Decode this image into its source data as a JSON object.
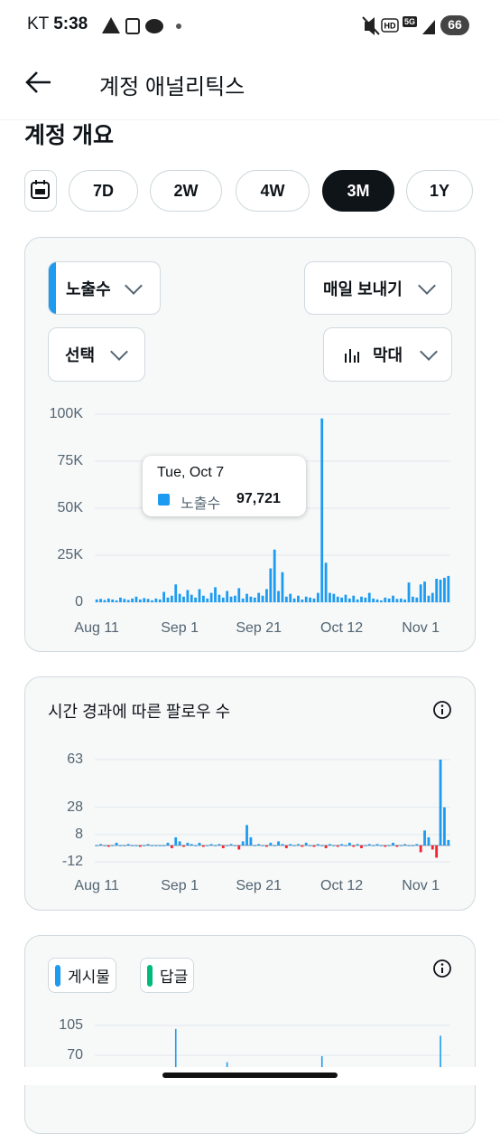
{
  "status_bar": {
    "carrier": "KT",
    "time": "5:38",
    "icons": [
      "HD",
      "5G"
    ],
    "battery": "66"
  },
  "header": {
    "title": "계정 애널리틱스"
  },
  "section_title": "계정 개요",
  "range_buttons": {
    "options": [
      "7D",
      "2W",
      "4W",
      "3M",
      "1Y"
    ],
    "selected": "3M"
  },
  "impressions_card": {
    "frequency_dropdown": "매일 보내기",
    "select_dropdown": "선택",
    "chart_type_dropdown": "막대"
  },
  "tooltip": {
    "title": "Tue, Oct 7",
    "label": "97,721"
  },
  "chart_data": [
    {
      "type": "bar",
      "categories": [
        "Aug 11",
        null,
        null,
        null,
        null,
        null,
        null,
        null,
        null,
        null,
        null,
        null,
        null,
        null,
        null,
        null,
        null,
        null,
        null,
        null,
        null,
        "Sep 1",
        null,
        null,
        null,
        null,
        null,
        null,
        null,
        null,
        null,
        null,
        null,
        null,
        null,
        null,
        null,
        null,
        null,
        null,
        null,
        "Sep 21",
        null,
        null,
        null,
        null,
        null,
        null,
        null,
        null,
        null,
        null,
        null,
        null,
        null,
        null,
        null,
        null,
        null,
        null,
        null,
        null,
        "Oct 12",
        null,
        null,
        null,
        null,
        null,
        null,
        null,
        null,
        null,
        null,
        null,
        null,
        null,
        null,
        null,
        null,
        null,
        null,
        null,
        "Nov 1",
        null,
        null,
        null,
        null,
        null,
        null,
        null
      ],
      "series": [
        {
          "name": "노출수",
          "color": "#1d9bf0",
          "values": [
            1500,
            1800,
            1200,
            2000,
            1500,
            1000,
            2500,
            1800,
            1200,
            2000,
            3000,
            1500,
            2200,
            1800,
            1000,
            2000,
            1500,
            5500,
            2500,
            3500,
            9500,
            4500,
            3000,
            6500,
            4000,
            2500,
            7000,
            3500,
            2000,
            5000,
            8000,
            4000,
            2500,
            6000,
            3000,
            3500,
            7500,
            2000,
            4500,
            3000,
            2500,
            5000,
            3500,
            7000,
            18000,
            28000,
            6000,
            16000,
            3000,
            4500,
            2000,
            3500,
            1500,
            3000,
            2500,
            2000,
            5000,
            97721,
            21000,
            5000,
            4500,
            3000,
            2500,
            4000,
            2000,
            3500,
            1500,
            3000,
            2500,
            5000,
            2000,
            1500,
            1000,
            2500,
            2000,
            3500,
            1800,
            2000,
            1500,
            10500,
            3000,
            2500,
            9500,
            11000,
            3500,
            5000,
            12500,
            12000,
            13000,
            14000
          ]
        }
      ],
      "ylim": [
        0,
        100000
      ],
      "yticks": [
        0,
        {
          "value": 25000,
          "label": "25K"
        },
        {
          "value": 50000,
          "label": "50K"
        },
        {
          "value": 75000,
          "label": "75K"
        },
        {
          "value": 100000,
          "label": "100K"
        }
      ],
      "grid": true
    },
    {
      "type": "bar",
      "title": "시간 경과에 따른 팔로우 수",
      "categories": [
        "Aug 11",
        null,
        null,
        null,
        null,
        null,
        null,
        null,
        null,
        null,
        null,
        null,
        null,
        null,
        null,
        null,
        null,
        null,
        null,
        null,
        null,
        "Sep 1",
        null,
        null,
        null,
        null,
        null,
        null,
        null,
        null,
        null,
        null,
        null,
        null,
        null,
        null,
        null,
        null,
        null,
        null,
        null,
        "Sep 21",
        null,
        null,
        null,
        null,
        null,
        null,
        null,
        null,
        null,
        null,
        null,
        null,
        null,
        null,
        null,
        null,
        null,
        null,
        null,
        null,
        "Oct 12",
        null,
        null,
        null,
        null,
        null,
        null,
        null,
        null,
        null,
        null,
        null,
        null,
        null,
        null,
        null,
        null,
        null,
        null,
        null,
        "Nov 1",
        null,
        null,
        null,
        null,
        null,
        null,
        null
      ],
      "values": [
        0,
        1,
        0,
        -1,
        0,
        2,
        0,
        0,
        1,
        0,
        0,
        -1,
        0,
        1,
        0,
        0,
        0,
        0,
        2,
        -2,
        6,
        3,
        -1,
        2,
        1,
        0,
        2,
        -1,
        0,
        1,
        0,
        1,
        -2,
        0,
        1,
        0,
        -3,
        3,
        15,
        6,
        0,
        1,
        0,
        -1,
        2,
        0,
        3,
        1,
        -2,
        1,
        0,
        1,
        -1,
        2,
        0,
        -1,
        1,
        0,
        -2,
        1,
        0,
        -1,
        1,
        0,
        2,
        -1,
        1,
        -2,
        0,
        1,
        0,
        1,
        0,
        -1,
        0,
        2,
        -1,
        0,
        1,
        0,
        0,
        1,
        -5,
        11,
        6,
        -3,
        -9,
        63,
        28,
        4
      ],
      "colors": {
        "positive": "#1d9bf0",
        "negative": "#f4212e"
      },
      "ylim": [
        -12,
        63
      ],
      "yticks": [
        -12,
        8,
        28,
        63
      ],
      "grid": true
    },
    {
      "type": "bar",
      "series": [
        {
          "name": "게시물",
          "color": "#1d9bf0",
          "values": [
            null,
            null,
            null,
            null,
            null,
            null,
            null,
            null,
            null,
            null,
            null,
            null,
            null,
            null,
            null,
            null,
            null,
            null,
            null,
            null,
            101,
            null,
            null,
            null,
            null,
            null,
            null,
            null,
            null,
            null,
            null,
            null,
            null,
            62,
            null,
            null,
            null,
            null,
            null,
            null,
            null,
            null,
            null,
            null,
            null,
            null,
            null,
            null,
            null,
            null,
            null,
            null,
            null,
            null,
            null,
            null,
            null,
            69,
            null,
            null,
            null,
            null,
            null,
            null,
            null,
            null,
            null,
            null,
            null,
            null,
            null,
            null,
            null,
            null,
            null,
            null,
            null,
            null,
            null,
            null,
            null,
            null,
            null,
            null,
            null,
            null,
            null,
            93,
            null,
            null
          ]
        },
        {
          "name": "답글",
          "color": "#00ba7c"
        }
      ],
      "ylim": [
        0,
        110
      ],
      "yticks": [
        70,
        105
      ],
      "grid": true
    }
  ]
}
